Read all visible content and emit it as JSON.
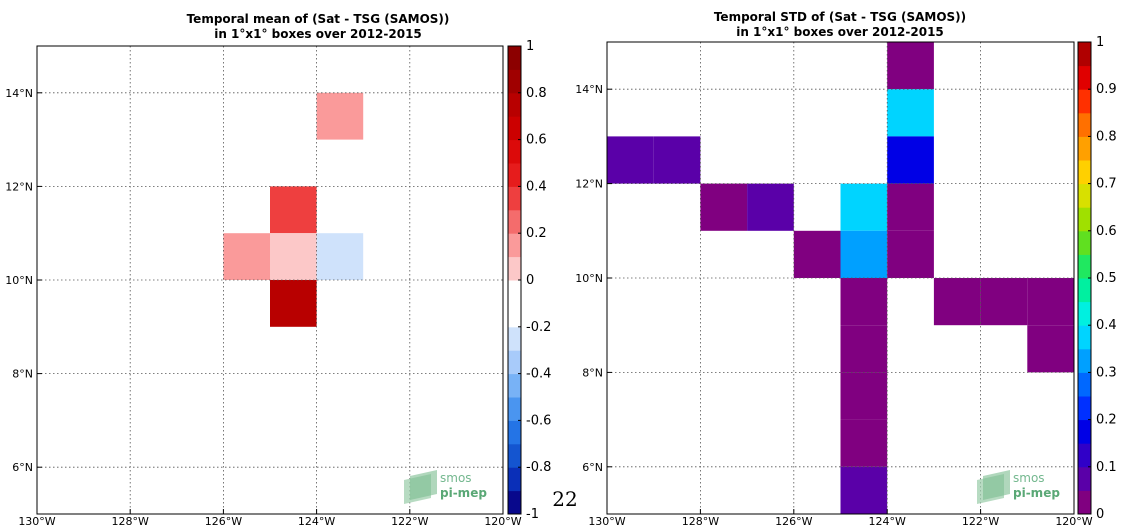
{
  "page_number": "22",
  "logo": {
    "line1": "smos",
    "line2": "pi-mep"
  },
  "chart_data": [
    {
      "type": "heatmap",
      "title": [
        "Temporal mean of (Sat - TSG (SAMOS))",
        "in 1°x1° boxes over 2012-2015"
      ],
      "x_ticks": [
        {
          "v": -130,
          "label": "130°W"
        },
        {
          "v": -128,
          "label": "128°W"
        },
        {
          "v": -126,
          "label": "126°W"
        },
        {
          "v": -124,
          "label": "124°W"
        },
        {
          "v": -122,
          "label": "122°W"
        },
        {
          "v": -120,
          "label": "120°W"
        }
      ],
      "y_ticks": [
        {
          "v": 6,
          "label": "6°N"
        },
        {
          "v": 8,
          "label": "8°N"
        },
        {
          "v": 10,
          "label": "10°N"
        },
        {
          "v": 12,
          "label": "12°N"
        },
        {
          "v": 14,
          "label": "14°N"
        }
      ],
      "xlim": [
        -130,
        -120
      ],
      "ylim": [
        5,
        15
      ],
      "grid": true,
      "colorbar": {
        "ticks": [
          "1",
          "0.8",
          "0.6",
          "0.4",
          "0.2",
          "0",
          "-0.2",
          "-0.4",
          "-0.6",
          "-0.8",
          "-1"
        ],
        "range": [
          -1,
          1
        ],
        "colors": [
          "#08088c",
          "#0a2fb8",
          "#1455d0",
          "#2474e6",
          "#4a95f0",
          "#78b2f6",
          "#a8cbfa",
          "#cfe2fb",
          "#ffffff",
          "#ffffff",
          "#fcc8c8",
          "#fa9a9a",
          "#f46c6c",
          "#ee3f3f",
          "#e61c1c",
          "#dc0a0a",
          "#cc0000",
          "#b80000",
          "#a00000",
          "#8c0000"
        ]
      },
      "cells": [
        {
          "lon": -124,
          "lat": 14,
          "value": -0.1
        },
        {
          "lon": -124,
          "lat": 13,
          "value": 0.15
        },
        {
          "lon": -125,
          "lat": 11,
          "value": 0.3
        },
        {
          "lon": -126,
          "lat": 10,
          "value": 0.15
        },
        {
          "lon": -125,
          "lat": 10,
          "value": 0.0
        },
        {
          "lon": -124,
          "lat": 10,
          "value": -0.25
        },
        {
          "lon": -125,
          "lat": 9,
          "value": 0.7
        },
        {
          "lon": -121,
          "lat": 8,
          "value": -0.15
        },
        {
          "lon": -125,
          "lat": 7,
          "value": -0.15
        },
        {
          "lon": -125,
          "lat": 6,
          "value": -0.15
        }
      ]
    },
    {
      "type": "heatmap",
      "title": [
        "Temporal STD of (Sat - TSG (SAMOS))",
        "in 1°x1° boxes over 2012-2015"
      ],
      "x_ticks": [
        {
          "v": -130,
          "label": "130°W"
        },
        {
          "v": -128,
          "label": "128°W"
        },
        {
          "v": -126,
          "label": "126°W"
        },
        {
          "v": -124,
          "label": "124°W"
        },
        {
          "v": -122,
          "label": "122°W"
        },
        {
          "v": -120,
          "label": "120°W"
        }
      ],
      "y_ticks": [
        {
          "v": 6,
          "label": "6°N"
        },
        {
          "v": 8,
          "label": "8°N"
        },
        {
          "v": 10,
          "label": "10°N"
        },
        {
          "v": 12,
          "label": "12°N"
        },
        {
          "v": 14,
          "label": "14°N"
        }
      ],
      "xlim": [
        -130,
        -120
      ],
      "ylim": [
        5,
        15
      ],
      "grid": true,
      "colorbar": {
        "ticks": [
          "1",
          "0.9",
          "0.8",
          "0.7",
          "0.6",
          "0.5",
          "0.4",
          "0.3",
          "0.2",
          "0.1",
          "0"
        ],
        "range": [
          0,
          1
        ],
        "colors": [
          "#800080",
          "#5a00a8",
          "#3000c8",
          "#0000e6",
          "#0030ff",
          "#0068ff",
          "#00a0ff",
          "#00d4ff",
          "#00f0e0",
          "#00f0a0",
          "#20e860",
          "#60e020",
          "#a0e000",
          "#d8e000",
          "#ffd000",
          "#ffa000",
          "#ff7000",
          "#ff3000",
          "#e00000",
          "#b00000"
        ]
      },
      "cells": [
        {
          "lon": -124,
          "lat": 14,
          "value": 0.02
        },
        {
          "lon": -124,
          "lat": 13,
          "value": 0.37
        },
        {
          "lon": -124,
          "lat": 12,
          "value": 0.18
        },
        {
          "lon": -130,
          "lat": 12,
          "value": 0.08
        },
        {
          "lon": -129,
          "lat": 12,
          "value": 0.08
        },
        {
          "lon": -128,
          "lat": 11,
          "value": 0.03
        },
        {
          "lon": -127,
          "lat": 11,
          "value": 0.08
        },
        {
          "lon": -125,
          "lat": 11,
          "value": 0.37
        },
        {
          "lon": -124,
          "lat": 11,
          "value": 0.02
        },
        {
          "lon": -126,
          "lat": 10,
          "value": 0.02
        },
        {
          "lon": -125,
          "lat": 10,
          "value": 0.32
        },
        {
          "lon": -124,
          "lat": 10,
          "value": 0.02
        },
        {
          "lon": -123,
          "lat": 9,
          "value": 0.02
        },
        {
          "lon": -122,
          "lat": 9,
          "value": 0.02
        },
        {
          "lon": -121,
          "lat": 9,
          "value": 0.02
        },
        {
          "lon": -125,
          "lat": 9,
          "value": 0.02
        },
        {
          "lon": -125,
          "lat": 8,
          "value": 0.02
        },
        {
          "lon": -121,
          "lat": 8,
          "value": 0.02
        },
        {
          "lon": -125,
          "lat": 7,
          "value": 0.02
        },
        {
          "lon": -125,
          "lat": 6,
          "value": 0.02
        },
        {
          "lon": -125,
          "lat": 5,
          "value": 0.08
        }
      ]
    }
  ]
}
